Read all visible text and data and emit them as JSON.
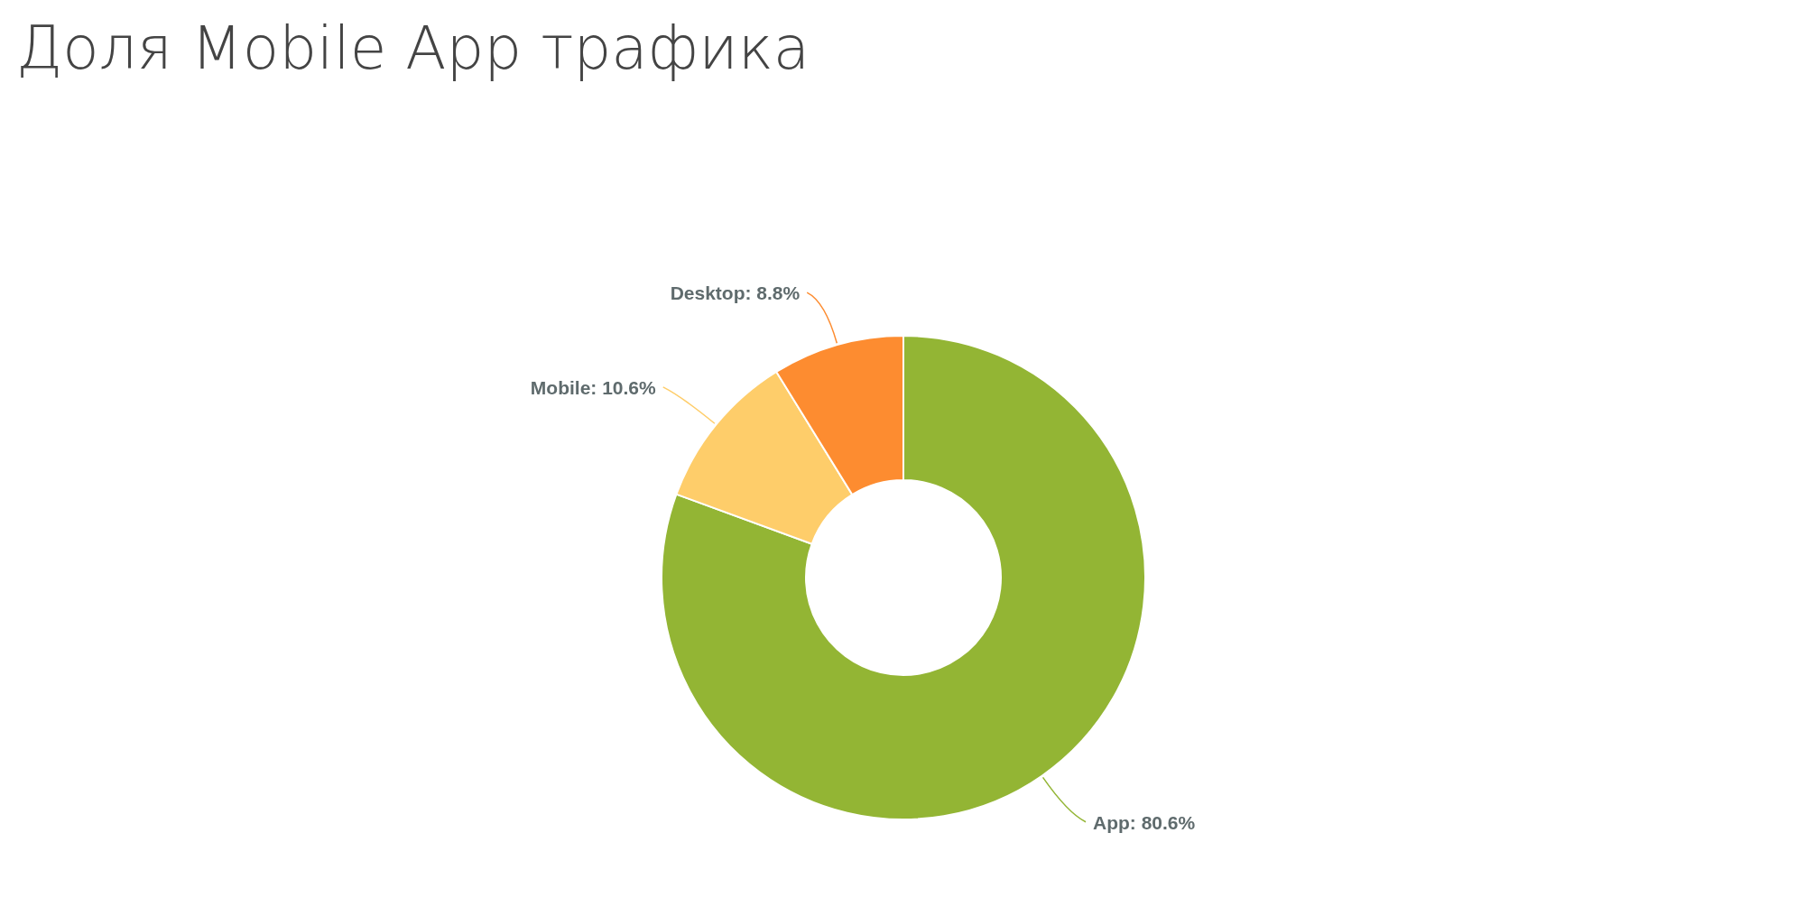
{
  "chart_data": {
    "type": "donut",
    "title": "Доля Mobile App трафика",
    "categories": [
      "App",
      "Mobile",
      "Desktop"
    ],
    "values": [
      80.6,
      10.6,
      8.8
    ],
    "colors": [
      "#93b534",
      "#fecd6a",
      "#fd8c30"
    ],
    "value_labels": [
      "80.6%",
      "10.6%",
      "8.8%"
    ]
  }
}
